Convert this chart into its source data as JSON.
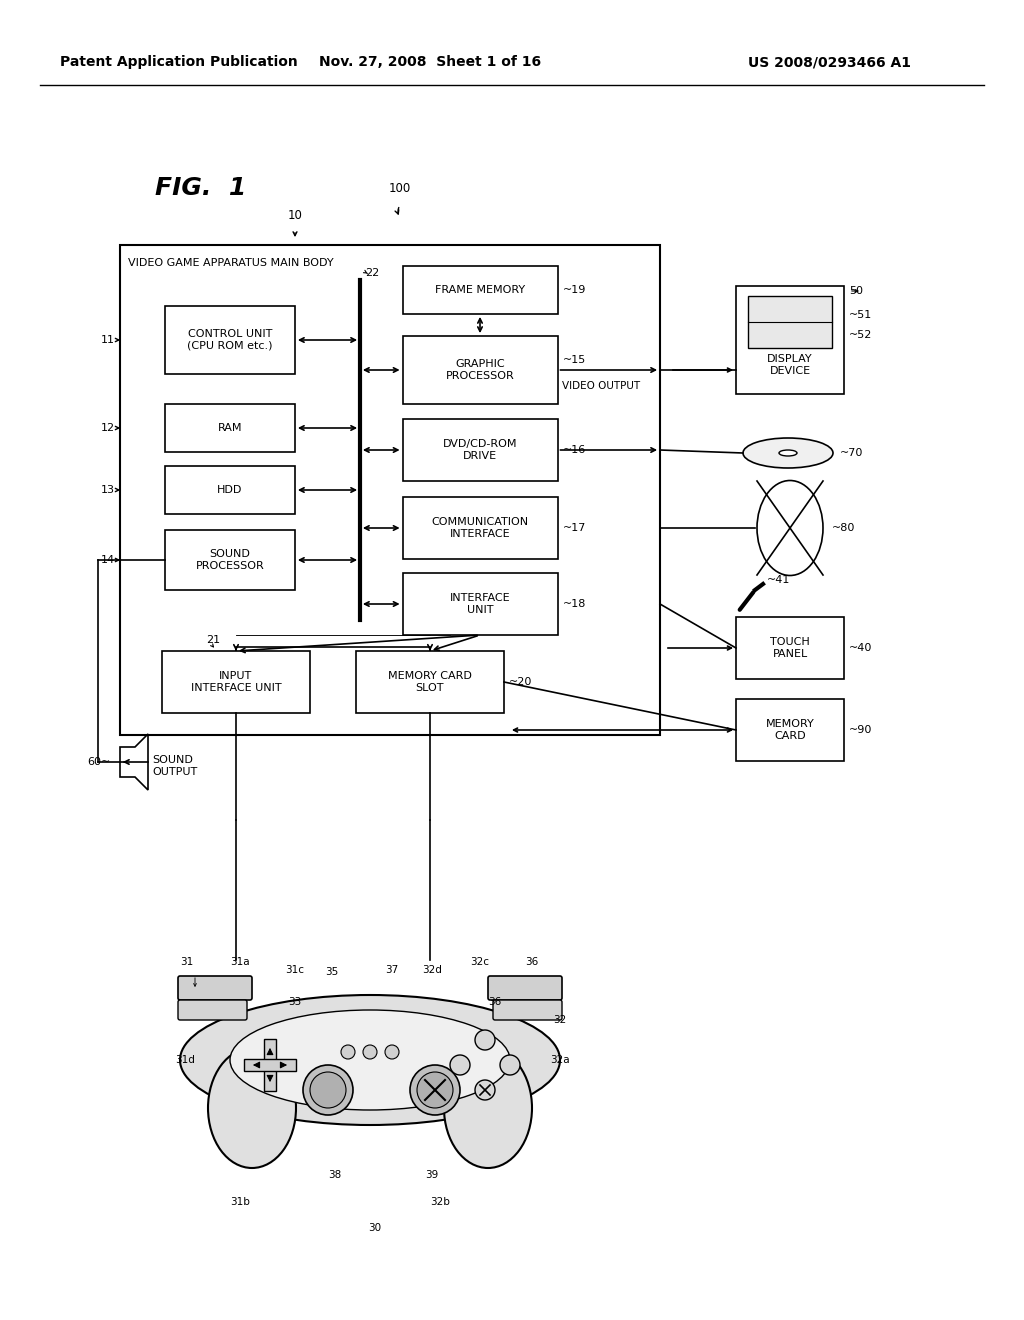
{
  "title_header": "Patent Application Publication",
  "date_header": "Nov. 27, 2008  Sheet 1 of 16",
  "patent_number": "US 2008/0293466 A1",
  "fig_label": "FIG.  1",
  "main_body_label": "VIDEO GAME APPARATUS MAIN BODY",
  "background_color": "#ffffff",
  "box_color": "#000000",
  "text_color": "#000000"
}
